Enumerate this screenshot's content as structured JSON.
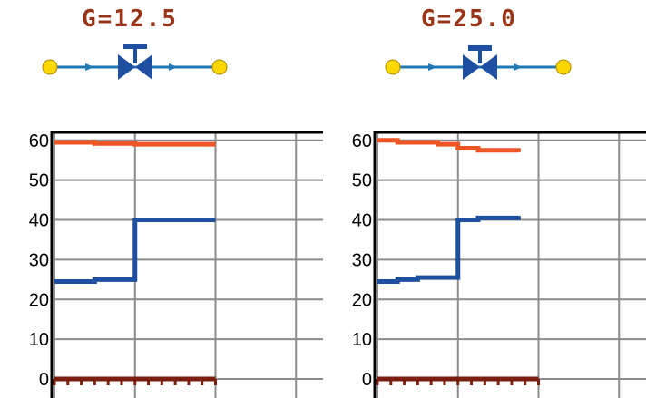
{
  "panels": [
    {
      "flow_label": "G=12.5",
      "chart_data": {
        "type": "line",
        "step": true,
        "y_ticks": [
          "0",
          "10",
          "20",
          "30",
          "40",
          "50",
          "60"
        ],
        "ylim": [
          0,
          62
        ],
        "x_domain": [
          0,
          4
        ],
        "x_gridlines": [
          0,
          1,
          2,
          3
        ],
        "grid": true,
        "series": [
          {
            "color": "#ee5522",
            "points": [
              [
                0,
                59.5
              ],
              [
                0.5,
                59.2
              ],
              [
                1,
                59.0
              ],
              [
                2,
                59.0
              ]
            ]
          },
          {
            "color": "#1e4fa0",
            "points": [
              [
                0,
                24.5
              ],
              [
                0.5,
                25.0
              ],
              [
                1,
                40.0
              ],
              [
                2,
                40.0
              ]
            ]
          },
          {
            "color": "#7a1e10",
            "points": [
              [
                0,
                0
              ],
              [
                2,
                0
              ]
            ],
            "marker": "dots"
          }
        ]
      }
    },
    {
      "flow_label": "G=25.0",
      "chart_data": {
        "type": "line",
        "step": true,
        "y_ticks": [
          "0",
          "10",
          "20",
          "30",
          "40",
          "50",
          "60"
        ],
        "ylim": [
          0,
          62
        ],
        "x_domain": [
          0,
          4
        ],
        "x_gridlines": [
          0,
          1,
          2,
          3
        ],
        "grid": true,
        "series": [
          {
            "color": "#ee5522",
            "points": [
              [
                0,
                60.0
              ],
              [
                0.25,
                59.5
              ],
              [
                0.75,
                59.0
              ],
              [
                1.0,
                58.0
              ],
              [
                1.25,
                57.5
              ],
              [
                1.75,
                57.0
              ]
            ]
          },
          {
            "color": "#1e4fa0",
            "points": [
              [
                0,
                24.5
              ],
              [
                0.25,
                25.0
              ],
              [
                0.5,
                25.5
              ],
              [
                1.0,
                26.5
              ],
              [
                1.0,
                40.0
              ],
              [
                1.25,
                40.5
              ],
              [
                1.75,
                41.0
              ]
            ]
          },
          {
            "color": "#7a1e10",
            "points": [
              [
                0,
                0
              ],
              [
                2,
                0
              ]
            ],
            "marker": "dots"
          }
        ]
      }
    }
  ],
  "valve": {
    "pipe_color": "#1f77b4",
    "body_color": "#1e4fa0",
    "node_color": "#ffd700",
    "icon": "valve-icon"
  }
}
